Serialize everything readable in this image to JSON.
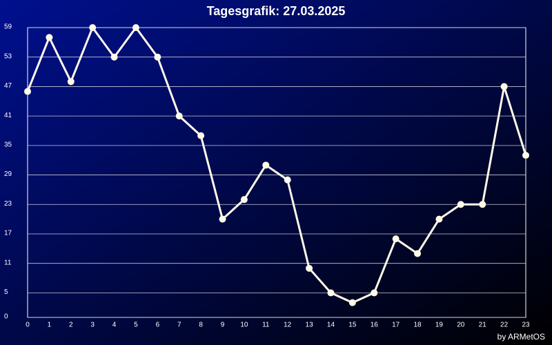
{
  "chart_data": {
    "type": "line",
    "title": "Tagesgrafik: 27.03.2025",
    "credit": "by ARMetOS",
    "x": [
      0,
      1,
      2,
      3,
      4,
      5,
      6,
      7,
      8,
      9,
      10,
      11,
      12,
      13,
      14,
      15,
      16,
      17,
      18,
      19,
      20,
      21,
      22,
      23
    ],
    "series": [
      {
        "color": "#fffbe8",
        "values": [
          46,
          57,
          48,
          59,
          53,
          59,
          53,
          41,
          37,
          20,
          24,
          31,
          28,
          10,
          5,
          3,
          5,
          16,
          13,
          20,
          23,
          23,
          47,
          33
        ]
      }
    ],
    "xlim": [
      0,
      23
    ],
    "xticks": [
      0,
      1,
      2,
      3,
      4,
      5,
      6,
      7,
      8,
      9,
      10,
      11,
      12,
      13,
      14,
      15,
      16,
      17,
      18,
      19,
      20,
      21,
      22,
      23
    ],
    "ylim": [
      0,
      59
    ],
    "yticks": [
      0,
      5,
      11,
      17,
      23,
      29,
      35,
      41,
      47,
      53,
      59
    ],
    "grid": true
  }
}
